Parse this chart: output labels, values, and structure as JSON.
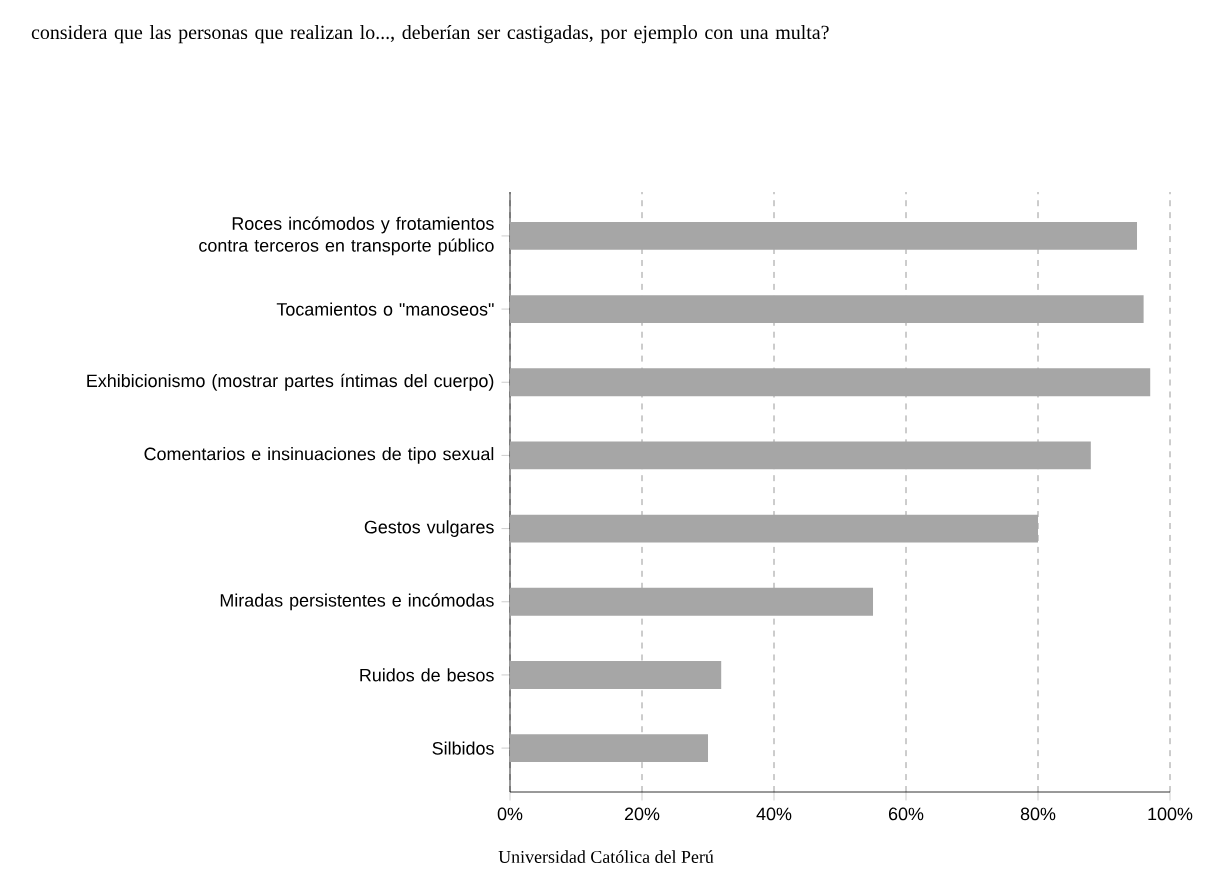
{
  "chart_data": {
    "type": "bar",
    "orientation": "horizontal",
    "subtitle": "considera que las personas que realizan lo..., deberían ser castigadas, por ejemplo con una multa?",
    "categories": [
      "Roces incómodos y frotamientos contra terceros en transporte público",
      "Tocamientos o \"manoseos\"",
      "Exhibicionismo (mostrar partes íntimas del cuerpo)",
      "Comentarios e insinuaciones de tipo sexual",
      "Gestos vulgares",
      "Miradas persistentes e incómodas",
      "Ruidos de besos",
      "Silbidos"
    ],
    "values": [
      95,
      96,
      97,
      88,
      80,
      55,
      32,
      30
    ],
    "color": "#a6a6a6",
    "xlim": [
      0,
      100
    ],
    "xticks": [
      {
        "value": 0,
        "label": "0%"
      },
      {
        "value": 20,
        "label": "20%"
      },
      {
        "value": 40,
        "label": "40%"
      },
      {
        "value": 60,
        "label": "60%"
      },
      {
        "value": 80,
        "label": "80%"
      },
      {
        "value": 100,
        "label": "100%"
      }
    ],
    "grid": "x",
    "annotations": [
      "Universidad Católica del Perú"
    ]
  }
}
